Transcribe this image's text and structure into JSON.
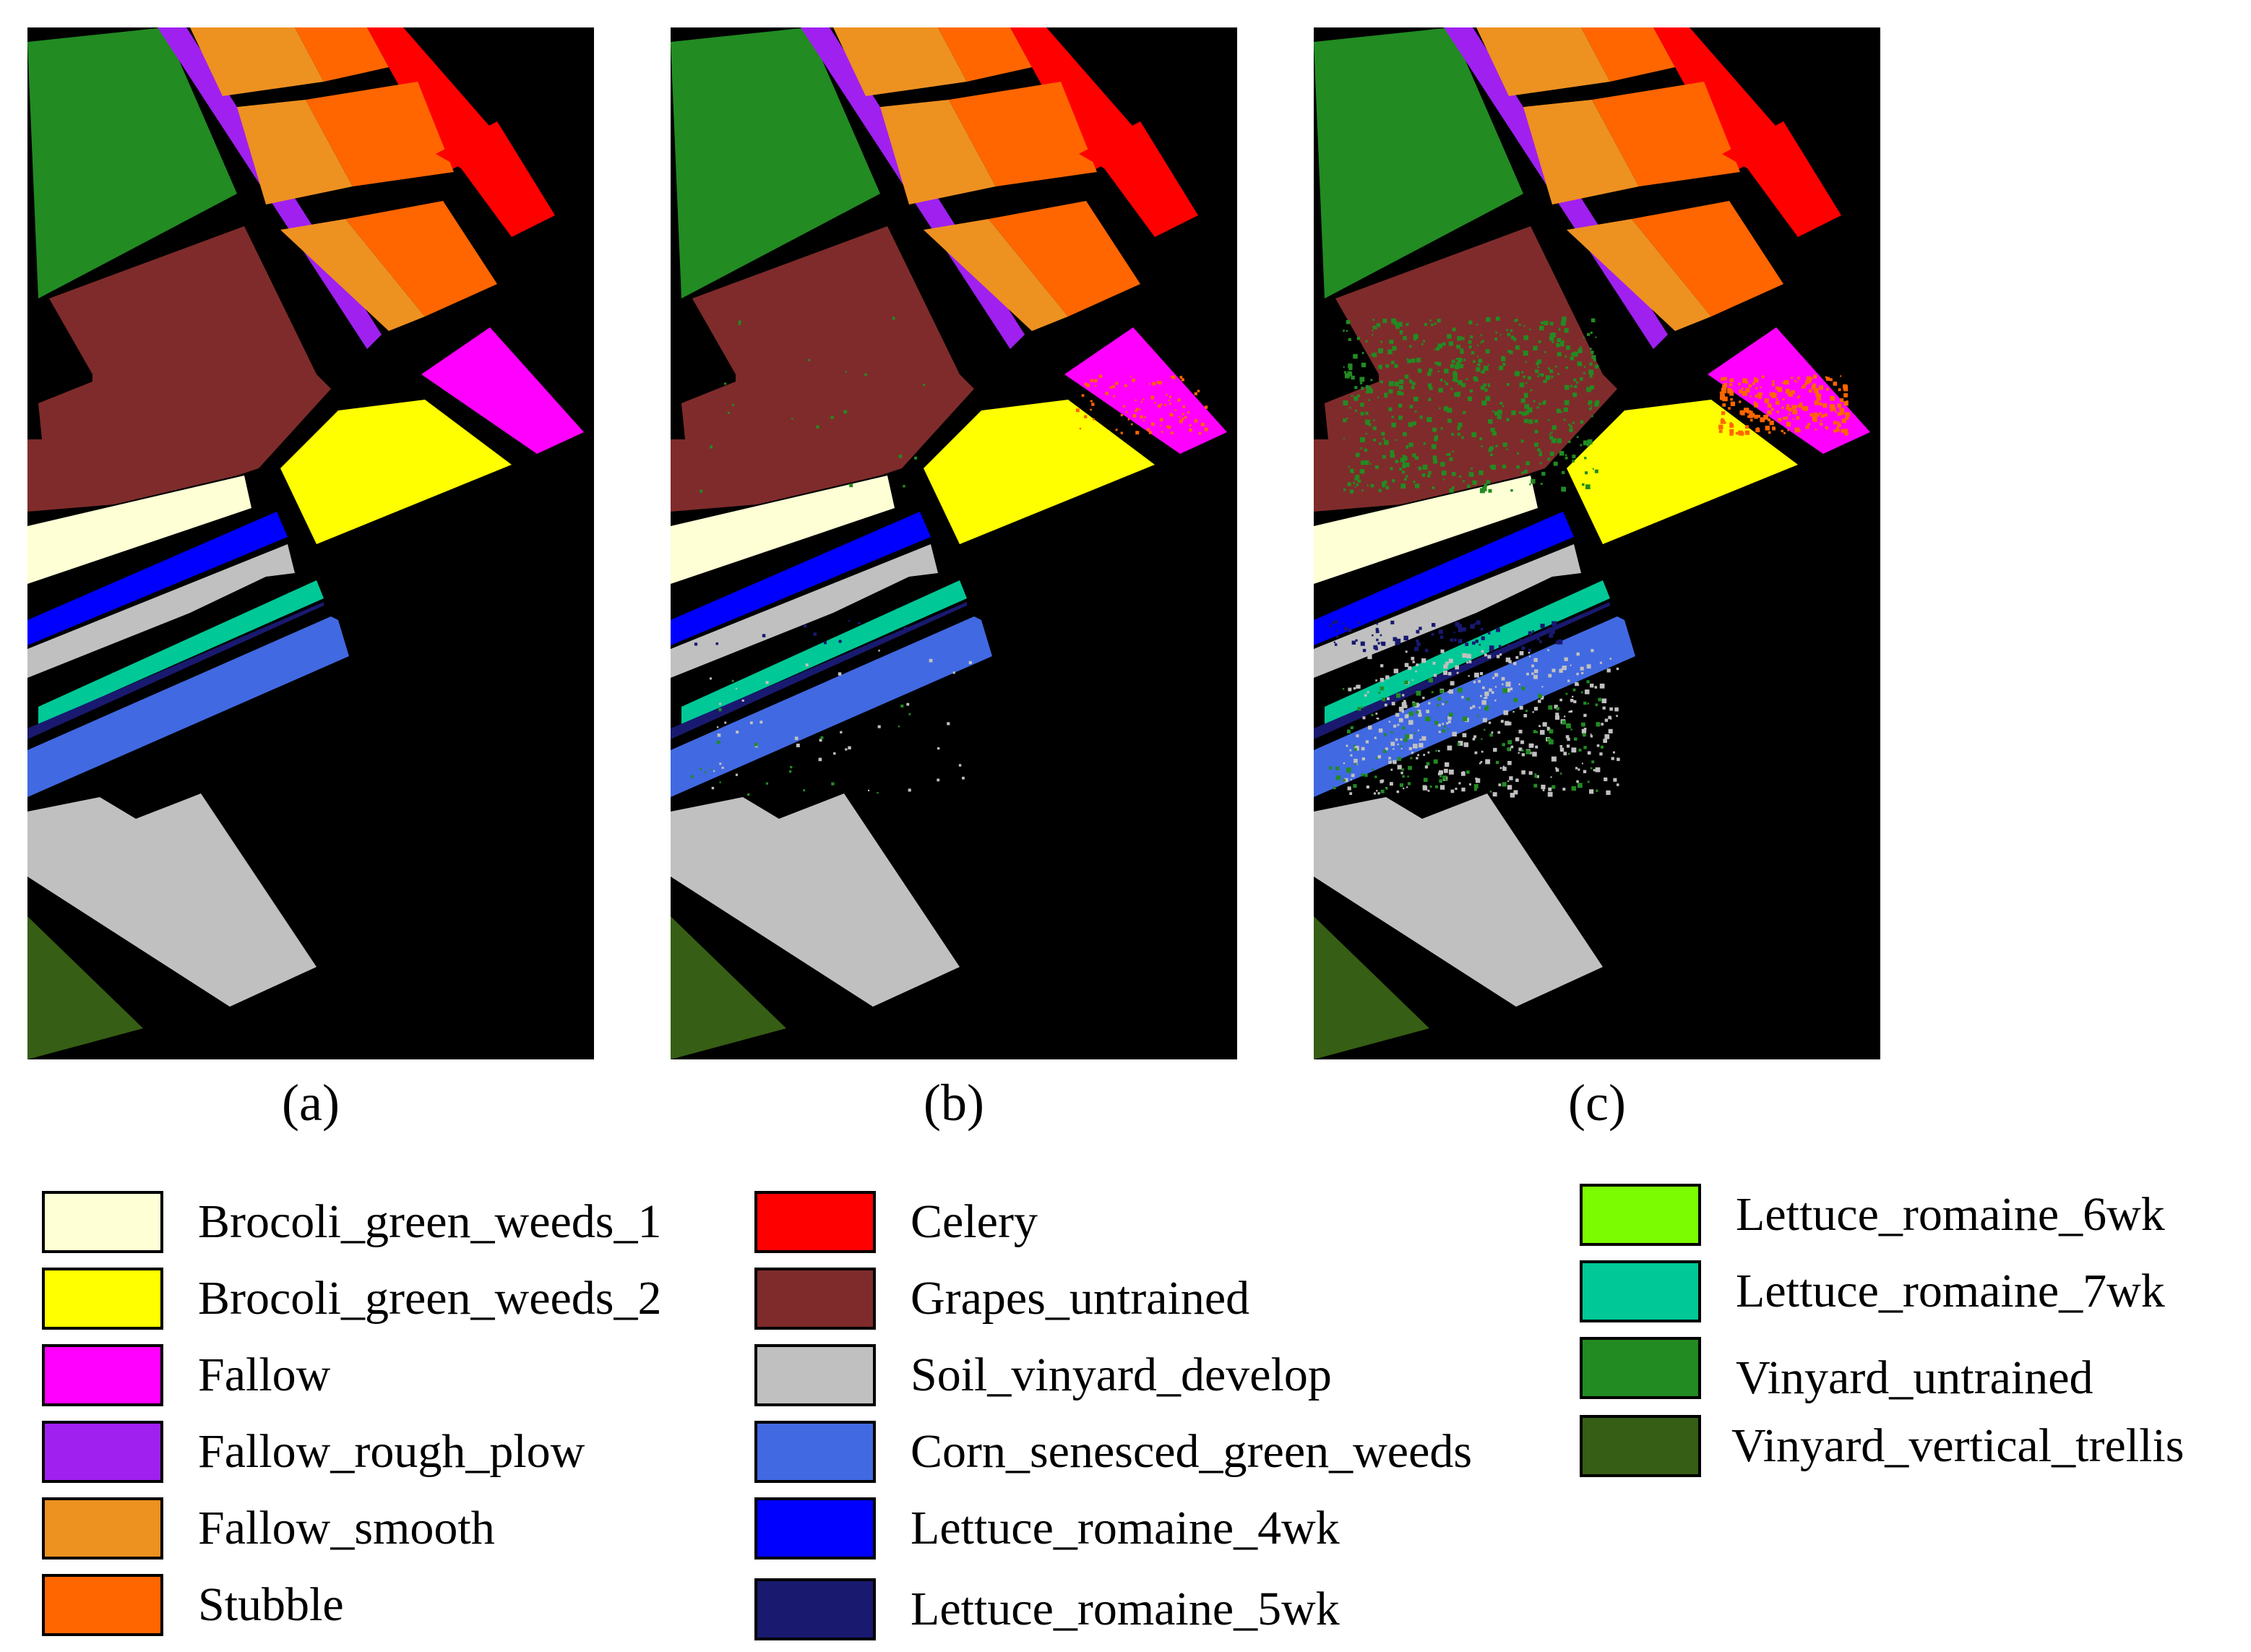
{
  "panels": [
    {
      "caption": "(a)",
      "noise": "none"
    },
    {
      "caption": "(b)",
      "noise": "light"
    },
    {
      "caption": "(c)",
      "noise": "heavy"
    }
  ],
  "legend": {
    "columns": [
      [
        {
          "label": "Brocoli_green_weeds_1",
          "color": "#FFFFD5"
        },
        {
          "label": "Brocoli_green_weeds_2",
          "color": "#FFFF00"
        },
        {
          "label": "Fallow",
          "color": "#FF00FF"
        },
        {
          "label": "Fallow_rough_plow",
          "color": "#A020F0"
        },
        {
          "label": "Fallow_smooth",
          "color": "#ED9121"
        },
        {
          "label": "Stubble",
          "color": "#FF6600"
        }
      ],
      [
        {
          "label": "Celery",
          "color": "#FF0000"
        },
        {
          "label": "Grapes_untrained",
          "color": "#7F2B2B"
        },
        {
          "label": "Soil_vinyard_develop",
          "color": "#C0C0C0"
        },
        {
          "label": "Corn_senesced_green_weeds",
          "color": "#4169E1"
        },
        {
          "label": "Lettuce_romaine_4wk",
          "color": "#0000FF"
        },
        {
          "label": "Lettuce_romaine_5wk",
          "color": "#191970"
        }
      ],
      [
        {
          "label": "Lettuce_romaine_6wk",
          "color": "#7CFC00"
        },
        {
          "label": "Lettuce_romaine_7wk",
          "color": "#00C896"
        },
        {
          "label": "Vinyard_untrained",
          "color": "#228B22"
        },
        {
          "label": "Vinyard_vertical_trellis",
          "color": "#365E14"
        }
      ]
    ]
  }
}
